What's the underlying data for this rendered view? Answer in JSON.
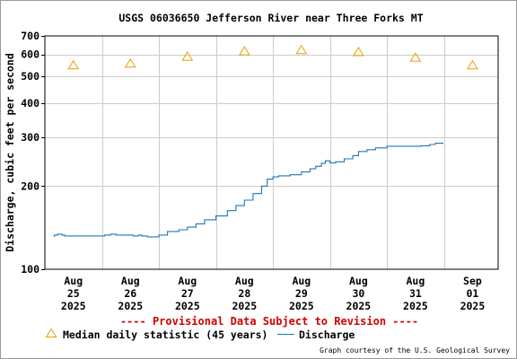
{
  "chart_data": {
    "type": "line",
    "title": "USGS 06036650 Jefferson River near Three Forks MT",
    "ylabel": "Discharge, cubic feet per second",
    "y_scale": "log",
    "ylim": [
      100,
      700
    ],
    "y_ticks": [
      100,
      200,
      300,
      400,
      500,
      600,
      700
    ],
    "x_ticks": [
      {
        "day": 0,
        "lines": [
          "Aug",
          "25",
          "2025"
        ]
      },
      {
        "day": 1,
        "lines": [
          "Aug",
          "26",
          "2025"
        ]
      },
      {
        "day": 2,
        "lines": [
          "Aug",
          "27",
          "2025"
        ]
      },
      {
        "day": 3,
        "lines": [
          "Aug",
          "28",
          "2025"
        ]
      },
      {
        "day": 4,
        "lines": [
          "Aug",
          "29",
          "2025"
        ]
      },
      {
        "day": 5,
        "lines": [
          "Aug",
          "30",
          "2025"
        ]
      },
      {
        "day": 6,
        "lines": [
          "Aug",
          "31",
          "2025"
        ]
      },
      {
        "day": 7,
        "lines": [
          "Sep",
          "01",
          "2025"
        ]
      }
    ],
    "grid": true,
    "series": [
      {
        "name": "Discharge",
        "color": "#1f77b4",
        "points": [
          [
            -0.35,
            132
          ],
          [
            -0.33,
            133
          ],
          [
            -0.28,
            134
          ],
          [
            -0.2,
            133
          ],
          [
            -0.15,
            132
          ],
          [
            0.0,
            132
          ],
          [
            0.2,
            132
          ],
          [
            0.4,
            132
          ],
          [
            0.55,
            133
          ],
          [
            0.65,
            134
          ],
          [
            0.75,
            133
          ],
          [
            0.9,
            133
          ],
          [
            1.0,
            133
          ],
          [
            1.05,
            132
          ],
          [
            1.1,
            132
          ],
          [
            1.15,
            133
          ],
          [
            1.2,
            132
          ],
          [
            1.3,
            131
          ],
          [
            1.42,
            131
          ],
          [
            1.5,
            133
          ],
          [
            1.65,
            137
          ],
          [
            1.85,
            139
          ],
          [
            2.0,
            142
          ],
          [
            2.15,
            146
          ],
          [
            2.3,
            151
          ],
          [
            2.5,
            156
          ],
          [
            2.7,
            163
          ],
          [
            2.85,
            170
          ],
          [
            3.0,
            178
          ],
          [
            3.15,
            188
          ],
          [
            3.3,
            200
          ],
          [
            3.4,
            212
          ],
          [
            3.5,
            216
          ],
          [
            3.6,
            218
          ],
          [
            3.8,
            220
          ],
          [
            4.0,
            225
          ],
          [
            4.15,
            231
          ],
          [
            4.25,
            236
          ],
          [
            4.35,
            242
          ],
          [
            4.42,
            247
          ],
          [
            4.5,
            243
          ],
          [
            4.6,
            245
          ],
          [
            4.75,
            251
          ],
          [
            4.9,
            258
          ],
          [
            5.0,
            267
          ],
          [
            5.15,
            271
          ],
          [
            5.3,
            275
          ],
          [
            5.5,
            279
          ],
          [
            5.7,
            279
          ],
          [
            5.9,
            279
          ],
          [
            6.1,
            280
          ],
          [
            6.25,
            283
          ],
          [
            6.35,
            286
          ],
          [
            6.42,
            286
          ],
          [
            6.48,
            284
          ]
        ]
      }
    ],
    "median_series": {
      "name": "Median daily statistic (45 years)",
      "marker": "triangle",
      "color": "#e8a000",
      "points": [
        [
          0,
          548
        ],
        [
          1,
          556
        ],
        [
          2,
          589
        ],
        [
          3,
          616
        ],
        [
          4,
          622
        ],
        [
          5,
          612
        ],
        [
          6,
          584
        ],
        [
          7,
          548
        ]
      ]
    },
    "provisional_note": "---- Provisional Data Subject to Revision ----",
    "credit": "Graph courtesy of the U.S. Geological Survey",
    "legend_placement": "bottom"
  }
}
